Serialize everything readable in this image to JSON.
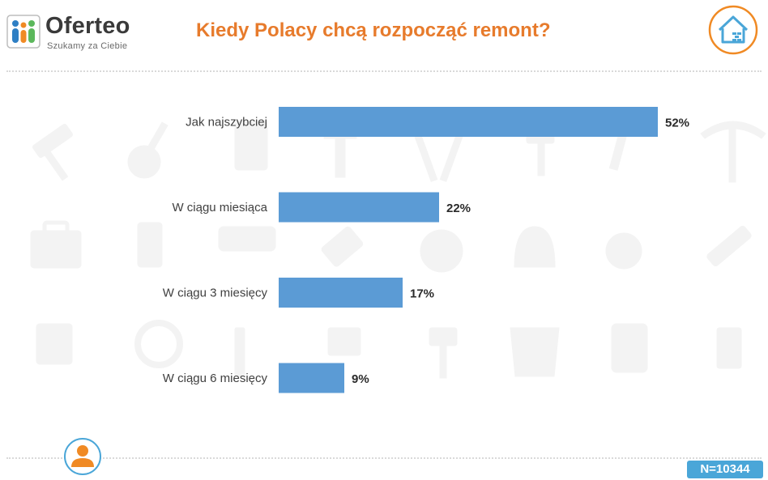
{
  "header": {
    "brand": "Oferteo",
    "tagline": "Szukamy za Ciebie",
    "title": "Kiedy Polacy chcą rozpocząć remont?"
  },
  "footer": {
    "sample_size": "N=10344"
  },
  "colors": {
    "bar": "#5b9bd5",
    "title": "#e77b2c",
    "accent_blue": "#4aa6d8",
    "logo_blue": "#2e7fc4",
    "logo_orange": "#f08a24",
    "logo_green": "#5cb85c"
  },
  "icons": [
    "oferteo-logo-icon",
    "house-icon",
    "person-icon",
    "tools-background-icon"
  ],
  "chart_data": {
    "type": "bar",
    "orientation": "horizontal",
    "title": "Kiedy Polacy chcą rozpocząć remont?",
    "categories": [
      "Jak najszybciej",
      "W ciągu miesiąca",
      "W ciągu 3 miesięcy",
      "W ciągu 6 miesięcy"
    ],
    "values": [
      52,
      22,
      17,
      9
    ],
    "value_labels": [
      "52%",
      "22%",
      "17%",
      "9%"
    ],
    "unit": "%",
    "xlim": [
      0,
      52
    ],
    "grid": false,
    "legend": "none"
  }
}
